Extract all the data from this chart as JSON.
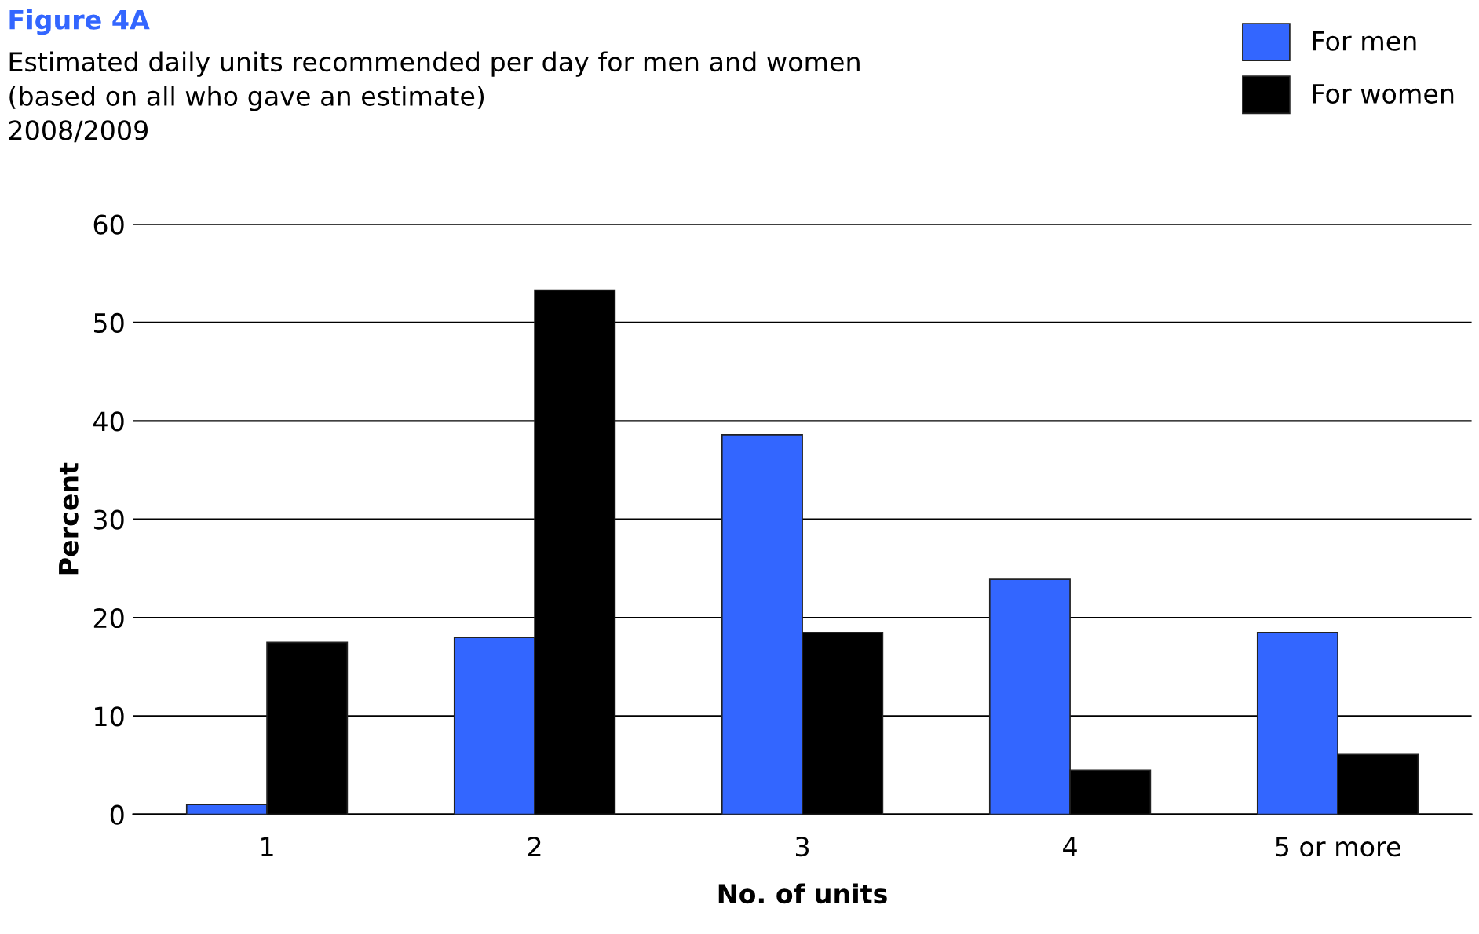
{
  "chart_data": {
    "type": "bar",
    "title": "Figure 4A",
    "subtitle": "Estimated daily units recommended per day for men and women\n(based on all who gave an estimate)\n2008/2009",
    "xlabel": "No. of units",
    "ylabel": "Percent",
    "categories": [
      "1",
      "2",
      "3",
      "4",
      "5 or more"
    ],
    "series": [
      {
        "name": "For men",
        "color": "#3366ff",
        "values": [
          1.0,
          18,
          38.6,
          23.9,
          18.5
        ]
      },
      {
        "name": "For women",
        "color": "#000000",
        "values": [
          17.5,
          53.3,
          18.5,
          4.5,
          6.1
        ]
      }
    ],
    "ylim": [
      0,
      60
    ],
    "yticks": [
      0,
      10,
      20,
      30,
      40,
      50,
      60
    ],
    "grid": "y",
    "legend": "top right"
  }
}
